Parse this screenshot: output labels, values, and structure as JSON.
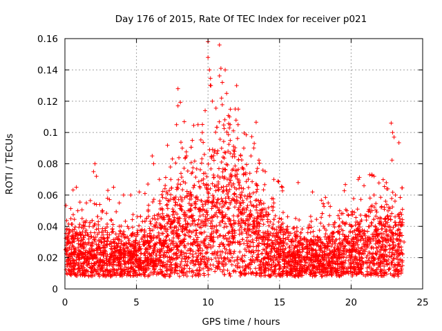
{
  "chart_data": {
    "type": "scatter",
    "title": "Day 176 of 2015, Rate Of TEC Index for receiver p021",
    "xlabel": "GPS time / hours",
    "ylabel": "ROTI / TECUs",
    "xlim": [
      0,
      25
    ],
    "ylim": [
      0,
      0.16
    ],
    "x_ticks": [
      "0",
      "5",
      "10",
      "15",
      "20",
      "25"
    ],
    "y_ticks": [
      "0",
      "0.02",
      "0.04",
      "0.06",
      "0.08",
      "0.1",
      "0.12",
      "0.14",
      "0.16"
    ],
    "grid": true,
    "marker": "+",
    "color": "#ff0000",
    "series": [
      {
        "name": "ROTI",
        "points": [
          [
            0.1,
            0.028
          ],
          [
            0.2,
            0.018
          ],
          [
            0.3,
            0.012
          ],
          [
            0.5,
            0.03
          ],
          [
            0.8,
            0.065
          ],
          [
            0.9,
            0.05
          ],
          [
            1.2,
            0.045
          ],
          [
            1.5,
            0.055
          ],
          [
            1.7,
            0.04
          ],
          [
            2.0,
            0.075
          ],
          [
            2.1,
            0.08
          ],
          [
            2.2,
            0.072
          ],
          [
            2.6,
            0.05
          ],
          [
            3.0,
            0.063
          ],
          [
            3.4,
            0.065
          ],
          [
            3.8,
            0.055
          ],
          [
            4.1,
            0.06
          ],
          [
            4.6,
            0.06
          ],
          [
            5.2,
            0.062
          ],
          [
            5.8,
            0.067
          ],
          [
            6.1,
            0.085
          ],
          [
            6.2,
            0.08
          ],
          [
            6.6,
            0.07
          ],
          [
            7.1,
            0.062
          ],
          [
            7.4,
            0.07
          ],
          [
            7.8,
            0.105
          ],
          [
            7.9,
            0.128
          ],
          [
            7.9,
            0.117
          ],
          [
            8.2,
            0.09
          ],
          [
            8.5,
            0.085
          ],
          [
            8.9,
            0.095
          ],
          [
            9.3,
            0.105
          ],
          [
            9.6,
            0.1
          ],
          [
            10.0,
            0.158
          ],
          [
            10.0,
            0.148
          ],
          [
            10.1,
            0.14
          ],
          [
            10.2,
            0.13
          ],
          [
            9.8,
            0.114
          ],
          [
            10.3,
            0.12
          ],
          [
            10.8,
            0.156
          ],
          [
            10.9,
            0.141
          ],
          [
            11.2,
            0.14
          ],
          [
            11.0,
            0.132
          ],
          [
            11.3,
            0.125
          ],
          [
            11.5,
            0.11
          ],
          [
            12.0,
            0.13
          ],
          [
            11.9,
            0.115
          ],
          [
            12.1,
            0.105
          ],
          [
            12.5,
            0.09
          ],
          [
            13.0,
            0.085
          ],
          [
            13.4,
            0.075
          ],
          [
            14.0,
            0.075
          ],
          [
            14.6,
            0.07
          ],
          [
            15.2,
            0.065
          ],
          [
            16.3,
            0.068
          ],
          [
            17.3,
            0.062
          ],
          [
            18.4,
            0.055
          ],
          [
            19.2,
            0.05
          ],
          [
            20.5,
            0.07
          ],
          [
            20.9,
            0.066
          ],
          [
            21.3,
            0.073
          ],
          [
            21.6,
            0.06
          ],
          [
            22.1,
            0.045
          ],
          [
            22.8,
            0.106
          ],
          [
            22.9,
            0.1
          ],
          [
            23.0,
            0.097
          ],
          [
            23.1,
            0.06
          ],
          [
            23.4,
            0.045
          ],
          [
            23.7,
            0.03
          ]
        ]
      }
    ]
  }
}
